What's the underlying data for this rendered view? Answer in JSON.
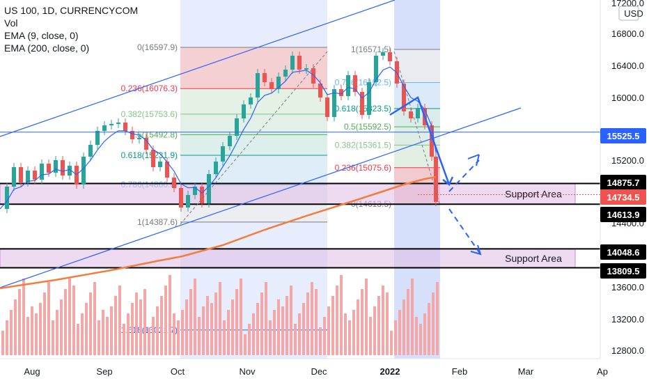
{
  "legend": {
    "symbol": "US 100, 1D, CURRENCYCOM",
    "vol": "Vol",
    "ema9": "EMA (9, close, 0)",
    "ema200": "EMA (200, close, 0)"
  },
  "chart_data": {
    "type": "candlestick",
    "currency": "USD",
    "y_axis_ticks": [
      "17200.0",
      "16800.0",
      "16400.0",
      "16000.0",
      "15200.0",
      "14400.0",
      "13600.0",
      "13200.0",
      "12800.0"
    ],
    "x_axis_labels": [
      "Aug",
      "Sep",
      "Oct",
      "Nov",
      "Dec",
      "2022",
      "Feb",
      "Mar",
      "Ap"
    ],
    "price_tags": [
      {
        "value": "15525.5",
        "color": "#2962ff"
      },
      {
        "value": "14875.7",
        "color": "#000000"
      },
      {
        "value": "14734.5",
        "color": "#ef5350"
      },
      {
        "value": "14613.9",
        "color": "#000000"
      },
      {
        "value": "14048.6",
        "color": "#000000"
      },
      {
        "value": "13809.5",
        "color": "#000000"
      }
    ],
    "fib_left": [
      {
        "label": "0(16597.9)",
        "value": 16597.9,
        "color": "#787b86"
      },
      {
        "label": "0.236(16076.3)",
        "value": 16076.3,
        "color": "#f23645"
      },
      {
        "label": "0.382(15753.6)",
        "value": 15753.6,
        "color": "#81c784"
      },
      {
        "label": "0.5(15492.8)",
        "value": 15492.8,
        "color": "#4caf50"
      },
      {
        "label": "0.618(15231.9)",
        "value": 15231.9,
        "color": "#089981"
      },
      {
        "label": "0.786(14860.6)",
        "value": 14860.6,
        "color": "#64b5f6"
      },
      {
        "label": "1(14387.6)",
        "value": 14387.6,
        "color": "#787b86"
      },
      {
        "label": "1.618(13021.7)",
        "value": 13021.7,
        "color": "#2962ff"
      }
    ],
    "fib_right": [
      {
        "label": "1(16571.5)",
        "value": 16571.5,
        "color": "#787b86"
      },
      {
        "label": "0.786(16152.5)",
        "value": 16152.5,
        "color": "#64b5f6"
      },
      {
        "label": "0.618(15823.5)",
        "value": 15823.5,
        "color": "#089981"
      },
      {
        "label": "0.5(15592.5)",
        "value": 15592.5,
        "color": "#4caf50"
      },
      {
        "label": "0.382(15361.5)",
        "value": 15361.5,
        "color": "#81c784"
      },
      {
        "label": "0.236(15075.6)",
        "value": 15075.6,
        "color": "#f23645"
      },
      {
        "label": "0(14613.5)",
        "value": 14613.5,
        "color": "#787b86"
      }
    ],
    "support_zones": [
      {
        "label": "Support Area",
        "top": 14875.7,
        "bottom": 14613.9
      },
      {
        "label": "Support Area",
        "top": 14048.6,
        "bottom": 13809.5
      }
    ],
    "horizontal_line": 15525.5,
    "last_price": 14734.5
  },
  "colors": {
    "up": "#26a69a",
    "down": "#ef5350",
    "ema9": "#2962ff",
    "ema200": "#f57c3a",
    "zone": "#e1bee7",
    "zone_border": "#9c27b0",
    "highlight": "#bbcbf7"
  }
}
